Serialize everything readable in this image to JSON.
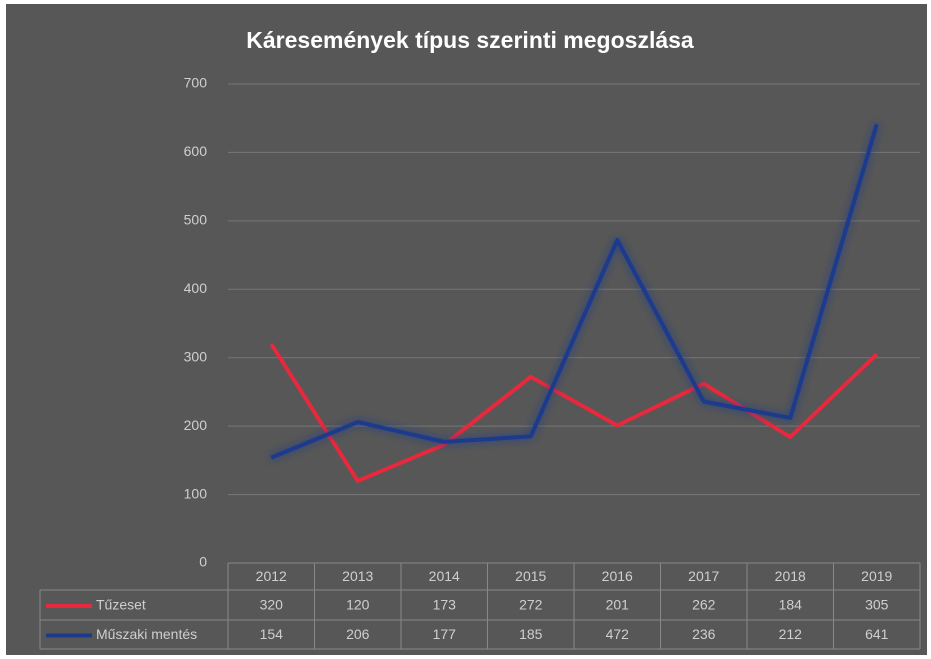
{
  "chart_data": {
    "type": "line",
    "title": "Káresemények típus szerinti megoszlása",
    "categories": [
      "2012",
      "2013",
      "2014",
      "2015",
      "2016",
      "2017",
      "2018",
      "2019"
    ],
    "series": [
      {
        "name": "Tűzeset",
        "color": "#e8283c",
        "values": [
          320,
          120,
          173,
          272,
          201,
          262,
          184,
          305
        ]
      },
      {
        "name": "Műszaki mentés",
        "color": "#1e3a8c",
        "values": [
          154,
          206,
          177,
          185,
          472,
          236,
          212,
          641
        ]
      }
    ],
    "ylim": [
      0,
      700
    ],
    "yticks": [
      0,
      100,
      200,
      300,
      400,
      500,
      600,
      700
    ],
    "grid": true,
    "data_table": true
  }
}
